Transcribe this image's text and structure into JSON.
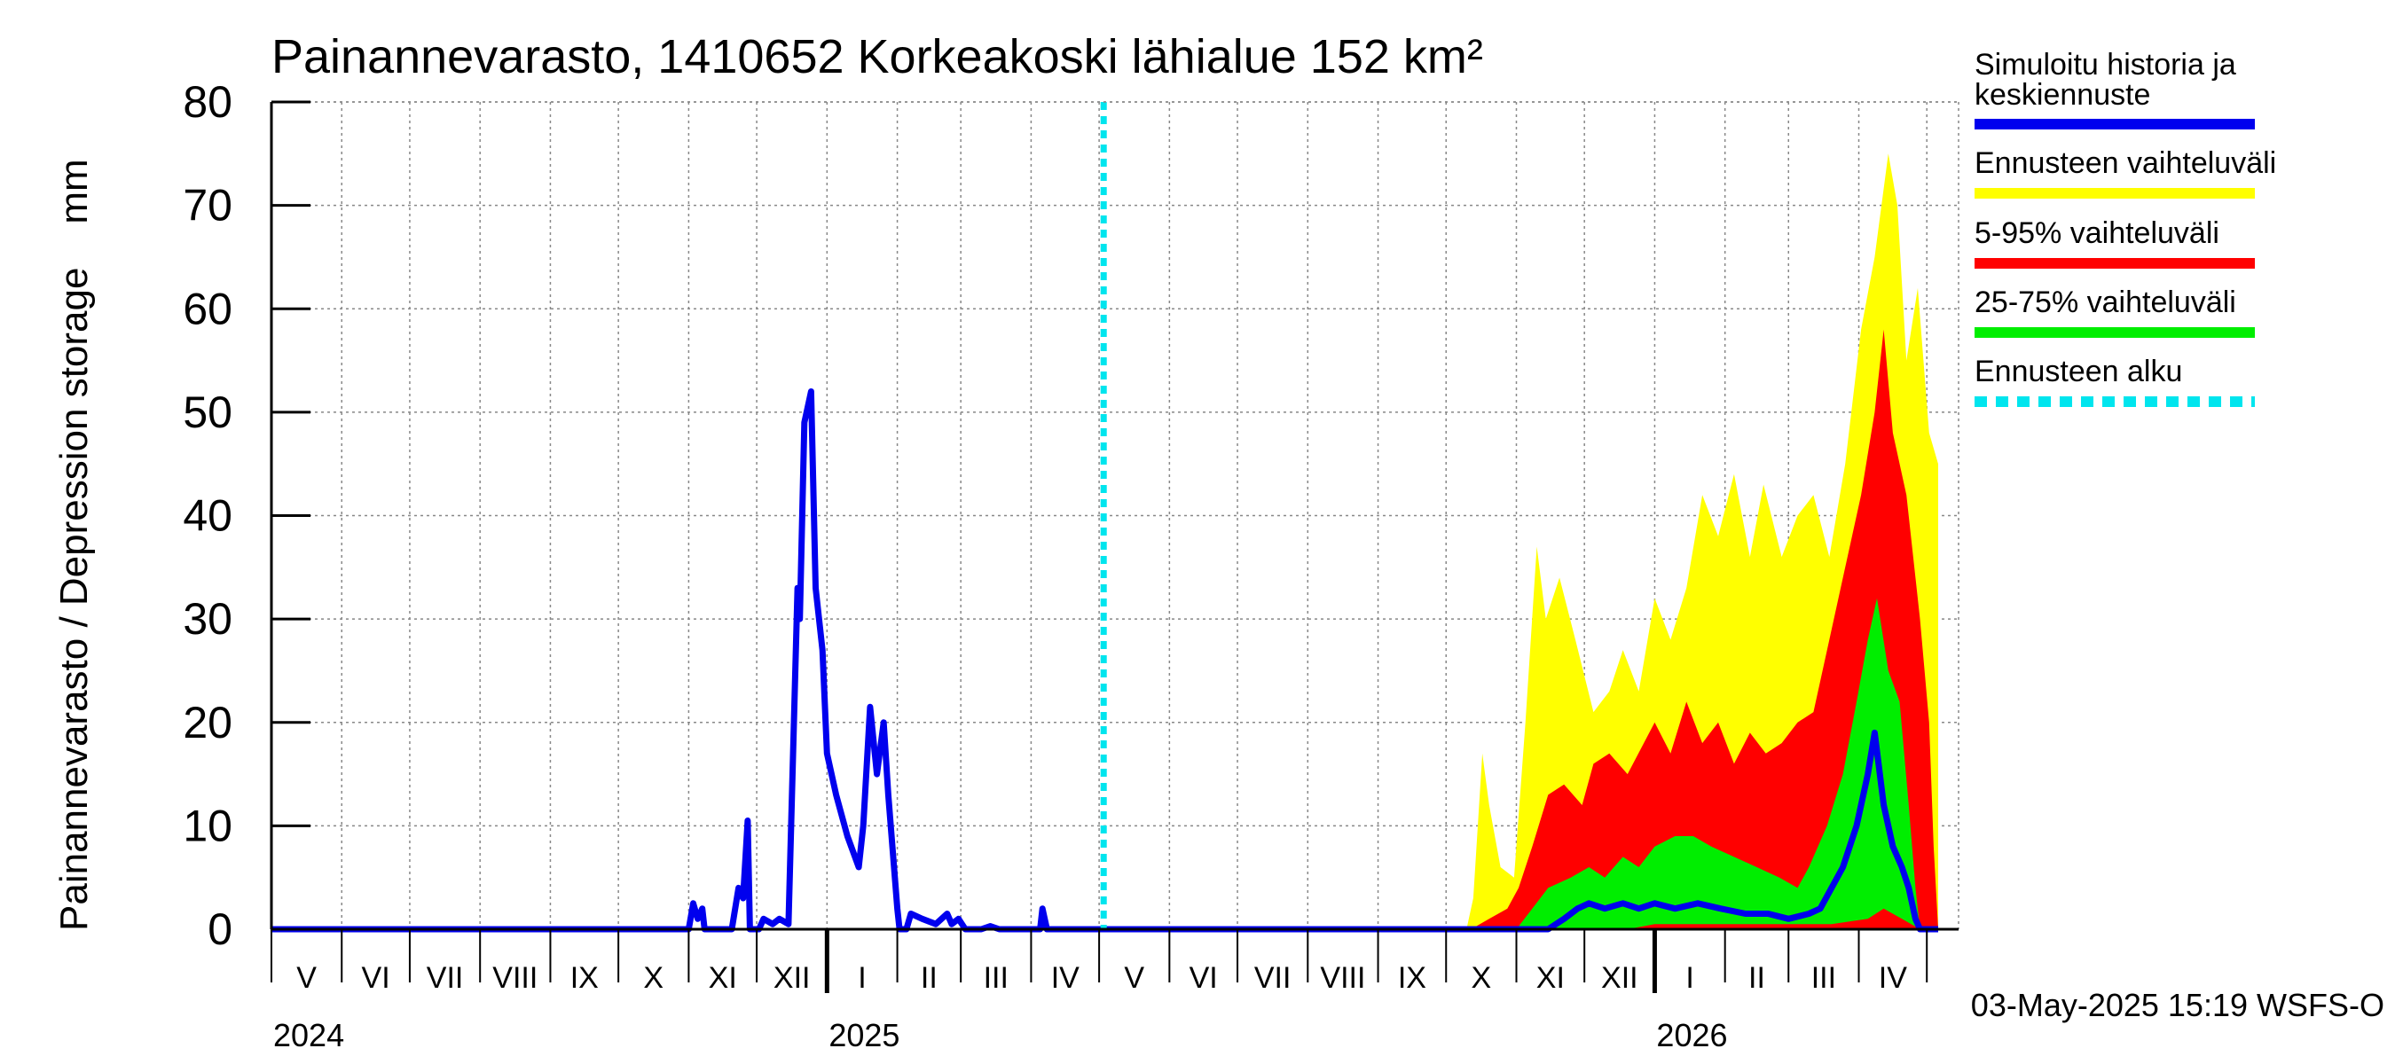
{
  "chart_data": {
    "type": "area",
    "title": "Painannevarasto, 1410652 Korkeakoski lähialue 152 km²",
    "ylabel": "Painannevarasto / Depression storage    mm",
    "ylim": [
      0,
      80
    ],
    "yticks": [
      0,
      10,
      20,
      30,
      40,
      50,
      60,
      70,
      80
    ],
    "xlim": [
      "2024-05-01",
      "2026-05-15"
    ],
    "grid": true,
    "legend_position": "right",
    "month_labels": [
      "V",
      "VI",
      "VII",
      "VIII",
      "IX",
      "X",
      "XI",
      "XII",
      "I",
      "II",
      "III",
      "IV",
      "V",
      "VI",
      "VII",
      "VIII",
      "IX",
      "X",
      "XI",
      "XII",
      "I",
      "II",
      "III",
      "IV"
    ],
    "year_labels": [
      {
        "label": "2024",
        "date": "2024-05-01"
      },
      {
        "label": "2025",
        "date": "2025-01-01"
      },
      {
        "label": "2026",
        "date": "2026-01-01"
      }
    ],
    "forecast_start": "2025-05-03",
    "timestamp": "03-May-2025 15:19 WSFS-O",
    "legend": [
      {
        "label": "Simuloitu historia ja keskiennuste",
        "color": "#0000ee",
        "style": "solid"
      },
      {
        "label": "Ennusteen vaihteluväli",
        "color": "#ffff00",
        "style": "solid"
      },
      {
        "label": "5-95% vaihteluväli",
        "color": "#ff0000",
        "style": "solid"
      },
      {
        "label": "25-75% vaihteluväli",
        "color": "#00ee00",
        "style": "solid"
      },
      {
        "label": "Ennusteen alku",
        "color": "#00e5ee",
        "style": "dashed"
      }
    ],
    "series": [
      {
        "name": "Simuloitu historia ja keskiennuste",
        "color": "#0000ee",
        "points": [
          [
            "2024-05-01",
            0
          ],
          [
            "2024-11-01",
            0
          ],
          [
            "2024-11-03",
            2.5
          ],
          [
            "2024-11-05",
            1
          ],
          [
            "2024-11-07",
            2
          ],
          [
            "2024-11-08",
            0
          ],
          [
            "2024-11-20",
            0
          ],
          [
            "2024-11-23",
            4
          ],
          [
            "2024-11-25",
            3
          ],
          [
            "2024-11-27",
            10.5
          ],
          [
            "2024-11-28",
            0
          ],
          [
            "2024-12-02",
            0
          ],
          [
            "2024-12-04",
            1
          ],
          [
            "2024-12-08",
            0.5
          ],
          [
            "2024-12-11",
            1
          ],
          [
            "2024-12-15",
            0.5
          ],
          [
            "2024-12-19",
            33
          ],
          [
            "2024-12-20",
            30
          ],
          [
            "2024-12-22",
            49
          ],
          [
            "2024-12-25",
            52
          ],
          [
            "2024-12-27",
            33
          ],
          [
            "2024-12-30",
            27
          ],
          [
            "2025-01-01",
            17
          ],
          [
            "2025-01-05",
            13
          ],
          [
            "2025-01-10",
            9
          ],
          [
            "2025-01-15",
            6
          ],
          [
            "2025-01-17",
            10
          ],
          [
            "2025-01-20",
            21.5
          ],
          [
            "2025-01-23",
            15
          ],
          [
            "2025-01-26",
            20
          ],
          [
            "2025-01-28",
            13
          ],
          [
            "2025-02-01",
            2
          ],
          [
            "2025-02-02",
            0
          ],
          [
            "2025-02-05",
            0
          ],
          [
            "2025-02-07",
            1.5
          ],
          [
            "2025-02-12",
            1
          ],
          [
            "2025-02-18",
            0.5
          ],
          [
            "2025-02-23",
            1.5
          ],
          [
            "2025-02-25",
            0.5
          ],
          [
            "2025-02-28",
            1
          ],
          [
            "2025-03-03",
            0
          ],
          [
            "2025-03-10",
            0
          ],
          [
            "2025-03-14",
            0.3
          ],
          [
            "2025-03-18",
            0
          ],
          [
            "2025-04-05",
            0
          ],
          [
            "2025-04-06",
            2
          ],
          [
            "2025-04-08",
            0
          ],
          [
            "2025-11-15",
            0
          ],
          [
            "2025-11-22",
            1
          ],
          [
            "2025-11-28",
            2
          ],
          [
            "2025-12-03",
            2.5
          ],
          [
            "2025-12-10",
            2
          ],
          [
            "2025-12-18",
            2.5
          ],
          [
            "2025-12-25",
            2
          ],
          [
            "2026-01-01",
            2.5
          ],
          [
            "2026-01-10",
            2
          ],
          [
            "2026-01-20",
            2.5
          ],
          [
            "2026-01-30",
            2
          ],
          [
            "2026-02-10",
            1.5
          ],
          [
            "2026-02-20",
            1.5
          ],
          [
            "2026-03-01",
            1
          ],
          [
            "2026-03-10",
            1.5
          ],
          [
            "2026-03-15",
            2
          ],
          [
            "2026-03-20",
            4
          ],
          [
            "2026-03-25",
            6
          ],
          [
            "2026-03-31",
            10
          ],
          [
            "2026-04-05",
            15
          ],
          [
            "2026-04-08",
            19
          ],
          [
            "2026-04-12",
            12
          ],
          [
            "2026-04-16",
            8
          ],
          [
            "2026-04-20",
            6
          ],
          [
            "2026-04-23",
            4
          ],
          [
            "2026-04-26",
            1
          ],
          [
            "2026-04-28",
            0
          ],
          [
            "2026-05-06",
            0
          ]
        ]
      }
    ],
    "bands": [
      {
        "name": "Ennusteen vaihteluväli",
        "color": "#ffff00",
        "upper": [
          [
            "2025-10-10",
            0
          ],
          [
            "2025-10-13",
            3
          ],
          [
            "2025-10-17",
            17
          ],
          [
            "2025-10-20",
            12
          ],
          [
            "2025-10-25",
            6
          ],
          [
            "2025-10-31",
            5
          ],
          [
            "2025-11-05",
            20
          ],
          [
            "2025-11-10",
            37
          ],
          [
            "2025-11-14",
            30
          ],
          [
            "2025-11-20",
            34
          ],
          [
            "2025-11-27",
            28
          ],
          [
            "2025-12-05",
            21
          ],
          [
            "2025-12-12",
            23
          ],
          [
            "2025-12-18",
            27
          ],
          [
            "2025-12-25",
            23
          ],
          [
            "2026-01-01",
            32
          ],
          [
            "2026-01-08",
            28
          ],
          [
            "2026-01-15",
            33
          ],
          [
            "2026-01-22",
            42
          ],
          [
            "2026-01-29",
            38
          ],
          [
            "2026-02-05",
            44
          ],
          [
            "2026-02-12",
            36
          ],
          [
            "2026-02-18",
            43
          ],
          [
            "2026-02-26",
            36
          ],
          [
            "2026-03-05",
            40
          ],
          [
            "2026-03-12",
            42
          ],
          [
            "2026-03-19",
            36
          ],
          [
            "2026-03-26",
            45
          ],
          [
            "2026-04-02",
            58
          ],
          [
            "2026-04-08",
            65
          ],
          [
            "2026-04-14",
            75
          ],
          [
            "2026-04-18",
            70
          ],
          [
            "2026-04-22",
            55
          ],
          [
            "2026-04-27",
            62
          ],
          [
            "2026-05-02",
            48
          ],
          [
            "2026-05-06",
            45
          ]
        ],
        "lower": [
          [
            "2025-10-10",
            0
          ],
          [
            "2026-05-06",
            0
          ]
        ]
      },
      {
        "name": "5-95% vaihteluväli",
        "color": "#ff0000",
        "upper": [
          [
            "2025-10-12",
            0
          ],
          [
            "2025-10-20",
            1
          ],
          [
            "2025-10-28",
            2
          ],
          [
            "2025-11-02",
            4
          ],
          [
            "2025-11-08",
            8
          ],
          [
            "2025-11-15",
            13
          ],
          [
            "2025-11-22",
            14
          ],
          [
            "2025-11-30",
            12
          ],
          [
            "2025-12-05",
            16
          ],
          [
            "2025-12-12",
            17
          ],
          [
            "2025-12-20",
            15
          ],
          [
            "2026-01-01",
            20
          ],
          [
            "2026-01-08",
            17
          ],
          [
            "2026-01-15",
            22
          ],
          [
            "2026-01-22",
            18
          ],
          [
            "2026-01-29",
            20
          ],
          [
            "2026-02-05",
            16
          ],
          [
            "2026-02-12",
            19
          ],
          [
            "2026-02-19",
            17
          ],
          [
            "2026-02-26",
            18
          ],
          [
            "2026-03-05",
            20
          ],
          [
            "2026-03-12",
            21
          ],
          [
            "2026-03-19",
            28
          ],
          [
            "2026-03-26",
            35
          ],
          [
            "2026-04-02",
            42
          ],
          [
            "2026-04-08",
            50
          ],
          [
            "2026-04-12",
            58
          ],
          [
            "2026-04-16",
            48
          ],
          [
            "2026-04-22",
            42
          ],
          [
            "2026-04-28",
            30
          ],
          [
            "2026-05-02",
            20
          ],
          [
            "2026-05-04",
            8
          ],
          [
            "2026-05-06",
            0
          ]
        ],
        "lower": [
          [
            "2025-10-12",
            0
          ],
          [
            "2026-05-06",
            0
          ]
        ]
      },
      {
        "name": "25-75% vaihteluväli",
        "color": "#00ee00",
        "upper": [
          [
            "2025-11-01",
            0
          ],
          [
            "2025-11-08",
            2
          ],
          [
            "2025-11-15",
            4
          ],
          [
            "2025-11-25",
            5
          ],
          [
            "2025-12-03",
            6
          ],
          [
            "2025-12-10",
            5
          ],
          [
            "2025-12-18",
            7
          ],
          [
            "2025-12-25",
            6
          ],
          [
            "2026-01-01",
            8
          ],
          [
            "2026-01-10",
            9
          ],
          [
            "2026-01-18",
            9
          ],
          [
            "2026-01-26",
            8
          ],
          [
            "2026-02-05",
            7
          ],
          [
            "2026-02-15",
            6
          ],
          [
            "2026-02-25",
            5
          ],
          [
            "2026-03-05",
            4
          ],
          [
            "2026-03-10",
            6
          ],
          [
            "2026-03-18",
            10
          ],
          [
            "2026-03-25",
            15
          ],
          [
            "2026-03-31",
            22
          ],
          [
            "2026-04-05",
            28
          ],
          [
            "2026-04-09",
            32
          ],
          [
            "2026-04-14",
            25
          ],
          [
            "2026-04-19",
            22
          ],
          [
            "2026-04-23",
            12
          ],
          [
            "2026-04-26",
            4
          ],
          [
            "2026-04-28",
            0
          ]
        ],
        "lower": [
          [
            "2025-11-01",
            0
          ],
          [
            "2025-12-20",
            0
          ],
          [
            "2026-01-01",
            0.5
          ],
          [
            "2026-02-01",
            0.5
          ],
          [
            "2026-03-01",
            0.5
          ],
          [
            "2026-03-20",
            0.5
          ],
          [
            "2026-04-05",
            1
          ],
          [
            "2026-04-12",
            2
          ],
          [
            "2026-04-20",
            1
          ],
          [
            "2026-04-28",
            0
          ]
        ]
      }
    ]
  }
}
